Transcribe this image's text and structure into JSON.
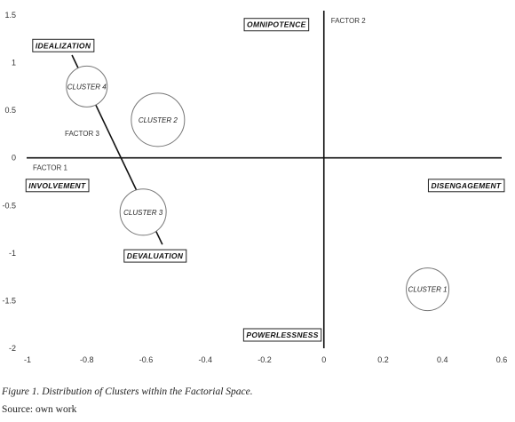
{
  "chart_data": {
    "type": "scatter",
    "xlim": [
      -1,
      0.6
    ],
    "ylim": [
      -2,
      1.5
    ],
    "x_ticks": [
      "-1",
      "-0.8",
      "-0.6",
      "-0.4",
      "-0.2",
      "0",
      "0.2",
      "0.4",
      "0.6"
    ],
    "y_ticks": [
      "1.5",
      "1",
      "0.5",
      "0",
      "-0.5",
      "-1",
      "-1.5",
      "-2"
    ],
    "axis_labels": {
      "factor1": "FACTOR 1",
      "factor2": "FACTOR 2",
      "factor3": "FACTOR 3"
    },
    "grid": false,
    "clusters": [
      {
        "label": "CLUSTER 4",
        "x": -0.8,
        "y": 0.75
      },
      {
        "label": "CLUSTER 2",
        "x": -0.56,
        "y": 0.4
      },
      {
        "label": "CLUSTER 3",
        "x": -0.61,
        "y": -0.57
      },
      {
        "label": "CLUSTER 1",
        "x": 0.35,
        "y": -1.38
      }
    ],
    "poles": [
      {
        "label": "OMNIPOTENCE",
        "x": -0.16,
        "y": 1.4
      },
      {
        "label": "IDEALIZATION",
        "x": -0.88,
        "y": 1.18
      },
      {
        "label": "INVOLVEMENT",
        "x": -0.9,
        "y": -0.29
      },
      {
        "label": "DISENGAGEMENT",
        "x": 0.48,
        "y": -0.29
      },
      {
        "label": "DEVALUATION",
        "x": -0.57,
        "y": -1.03
      },
      {
        "label": "POWERLESSNESS",
        "x": -0.14,
        "y": -1.86
      }
    ],
    "factor3_line": {
      "from": {
        "x": -0.85,
        "y": 1.08
      },
      "to": {
        "x": -0.545,
        "y": -0.91
      }
    }
  },
  "caption": "Figure 1. Distribution of Clusters within the Factorial Space.",
  "source": "Source: own work"
}
